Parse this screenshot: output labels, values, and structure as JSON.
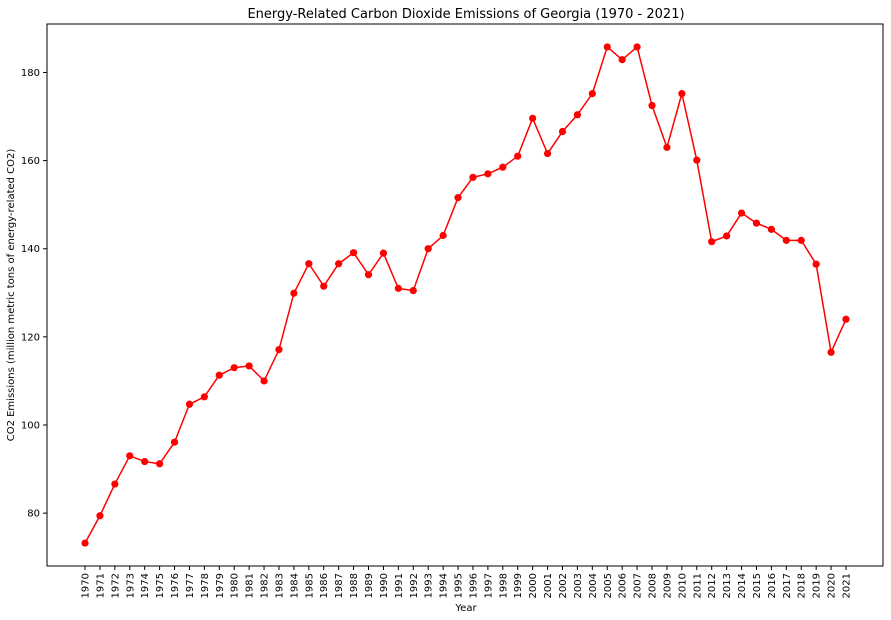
{
  "chart_data": {
    "type": "line",
    "title": "Energy-Related Carbon Dioxide Emissions of Georgia (1970 - 2021)",
    "xlabel": "Year",
    "ylabel": "CO2 Emissions (million metric tons of energy-related CO2)",
    "ylim": [
      68,
      191
    ],
    "yticks": [
      80,
      100,
      120,
      140,
      160,
      180
    ],
    "grid": false,
    "colors": {
      "line": "#ff0000",
      "marker": "#ff0000"
    },
    "categories": [
      "1970",
      "1971",
      "1972",
      "1973",
      "1974",
      "1975",
      "1976",
      "1977",
      "1978",
      "1979",
      "1980",
      "1981",
      "1982",
      "1983",
      "1984",
      "1985",
      "1986",
      "1987",
      "1988",
      "1989",
      "1990",
      "1991",
      "1992",
      "1993",
      "1994",
      "1995",
      "1996",
      "1997",
      "1998",
      "1999",
      "2000",
      "2001",
      "2002",
      "2003",
      "2004",
      "2005",
      "2006",
      "2007",
      "2008",
      "2009",
      "2010",
      "2011",
      "2012",
      "2013",
      "2014",
      "2015",
      "2016",
      "2017",
      "2018",
      "2019",
      "2020",
      "2021"
    ],
    "series": [
      {
        "values": [
          73.2,
          79.4,
          86.6,
          93.0,
          91.7,
          91.2,
          96.1,
          104.7,
          106.4,
          111.3,
          113.0,
          113.4,
          110.0,
          117.1,
          129.9,
          136.6,
          131.5,
          136.6,
          139.1,
          134.1,
          139.0,
          131.0,
          130.5,
          140.0,
          143.0,
          151.6,
          156.2,
          157.0,
          158.5,
          161.0,
          169.6,
          161.6,
          166.6,
          170.4,
          175.2,
          185.8,
          182.9,
          185.8,
          172.5,
          163.0,
          175.2,
          160.1,
          141.6,
          142.9,
          148.1,
          145.8,
          144.4,
          141.9,
          141.9,
          136.5,
          116.5,
          124.0
        ]
      }
    ]
  }
}
